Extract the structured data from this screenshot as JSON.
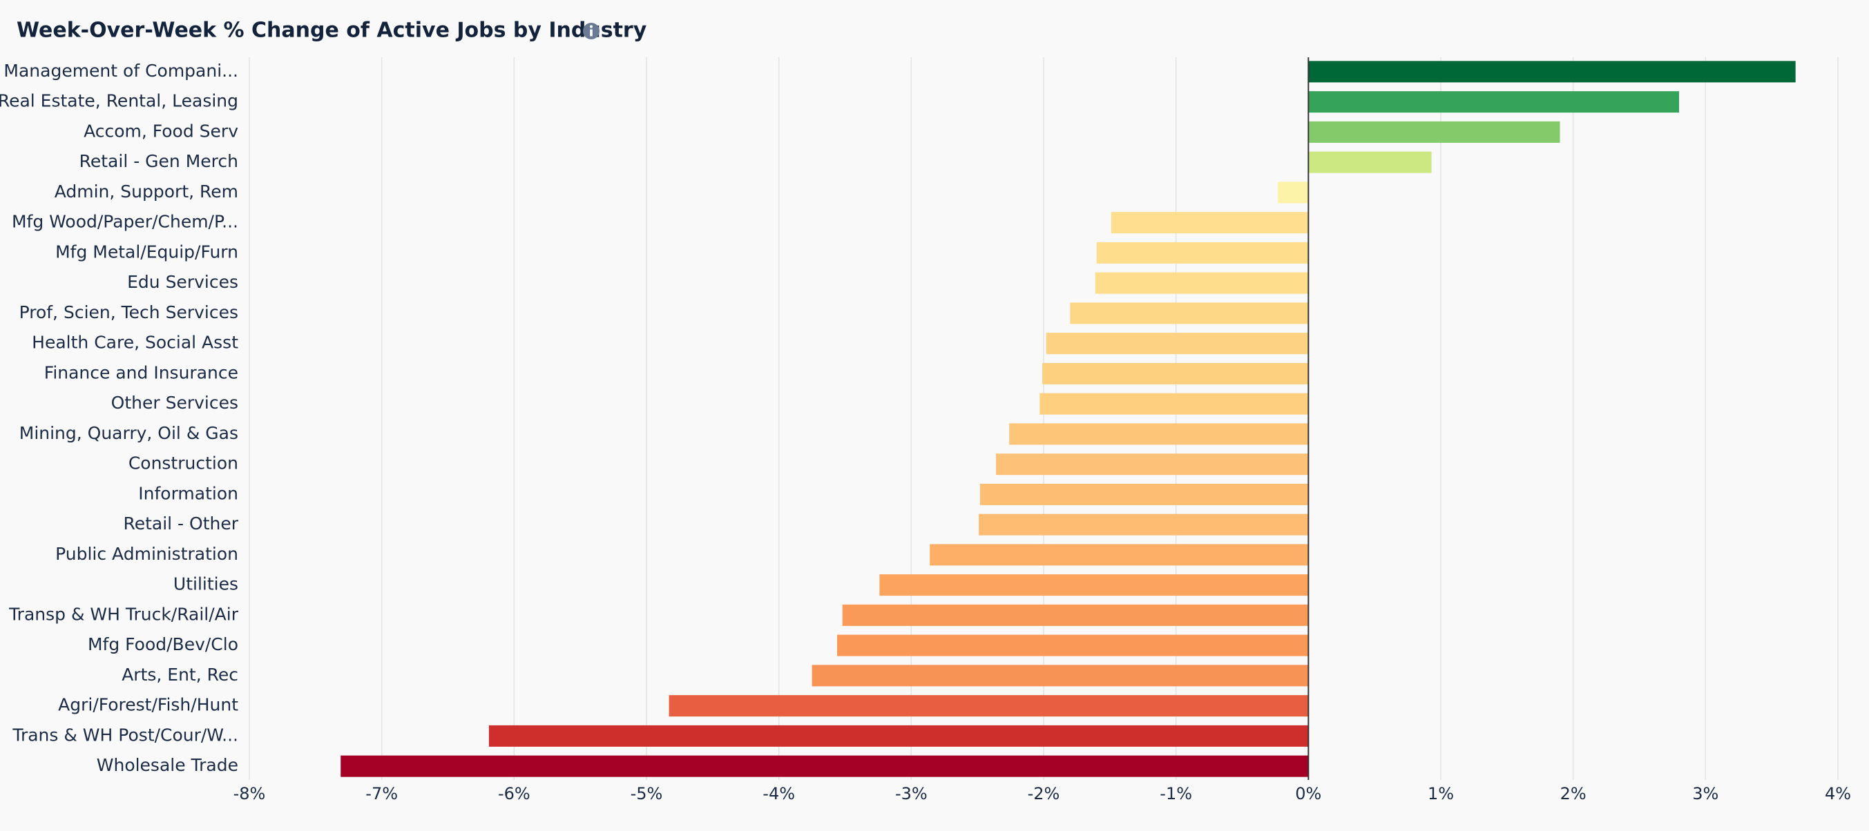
{
  "chart_data": {
    "type": "bar",
    "orientation": "horizontal",
    "title": "Week-Over-Week % Change of Active Jobs by Industry",
    "categories": [
      "Management of Compani...",
      "Real Estate, Rental, Leasing",
      "Accom, Food Serv",
      "Retail - Gen Merch",
      "Admin, Support, Rem",
      "Mfg Wood/Paper/Chem/P...",
      "Mfg Metal/Equip/Furn",
      "Edu Services",
      "Prof, Scien, Tech Services",
      "Health Care, Social Asst",
      "Finance and Insurance",
      "Other Services",
      "Mining, Quarry, Oil & Gas",
      "Construction",
      "Information",
      "Retail - Other",
      "Public Administration",
      "Utilities",
      "Transp & WH Truck/Rail/Air",
      "Mfg Food/Bev/Clo",
      "Arts, Ent, Rec",
      "Agri/Forest/Fish/Hunt",
      "Trans & WH Post/Cour/W...",
      "Wholesale Trade"
    ],
    "values": [
      3.68,
      2.8,
      1.9,
      0.93,
      -0.23,
      -1.49,
      -1.6,
      -1.61,
      -1.8,
      -1.98,
      -2.01,
      -2.03,
      -2.26,
      -2.36,
      -2.48,
      -2.49,
      -2.86,
      -3.24,
      -3.52,
      -3.56,
      -3.75,
      -4.83,
      -6.19,
      -7.31
    ],
    "colors": [
      "#006837",
      "#35a35a",
      "#84c96a",
      "#cce882",
      "#fdf3a8",
      "#fedf8f",
      "#fedd8d",
      "#fedd8d",
      "#fdd686",
      "#fdd282",
      "#fdd080",
      "#fdcf7f",
      "#fdc578",
      "#fdc277",
      "#fdbd73",
      "#fdbc72",
      "#fdaf67",
      "#fca35e",
      "#fa9a58",
      "#fa9857",
      "#f79355",
      "#e75f40",
      "#cf2f2c",
      "#a50026"
    ],
    "xlim": [
      -8,
      4
    ],
    "xticks": [
      {
        "value": -8,
        "label": "-8%"
      },
      {
        "value": -7,
        "label": "-7%"
      },
      {
        "value": -6,
        "label": "-6%"
      },
      {
        "value": -5,
        "label": "-5%"
      },
      {
        "value": -4,
        "label": "-4%"
      },
      {
        "value": -3,
        "label": "-3%"
      },
      {
        "value": -2,
        "label": "-2%"
      },
      {
        "value": -1,
        "label": "-1%"
      },
      {
        "value": 0,
        "label": "0%"
      },
      {
        "value": 1,
        "label": "1%"
      },
      {
        "value": 2,
        "label": "2%"
      },
      {
        "value": 3,
        "label": "3%"
      },
      {
        "value": 4,
        "label": "4%"
      }
    ],
    "grid": true
  }
}
